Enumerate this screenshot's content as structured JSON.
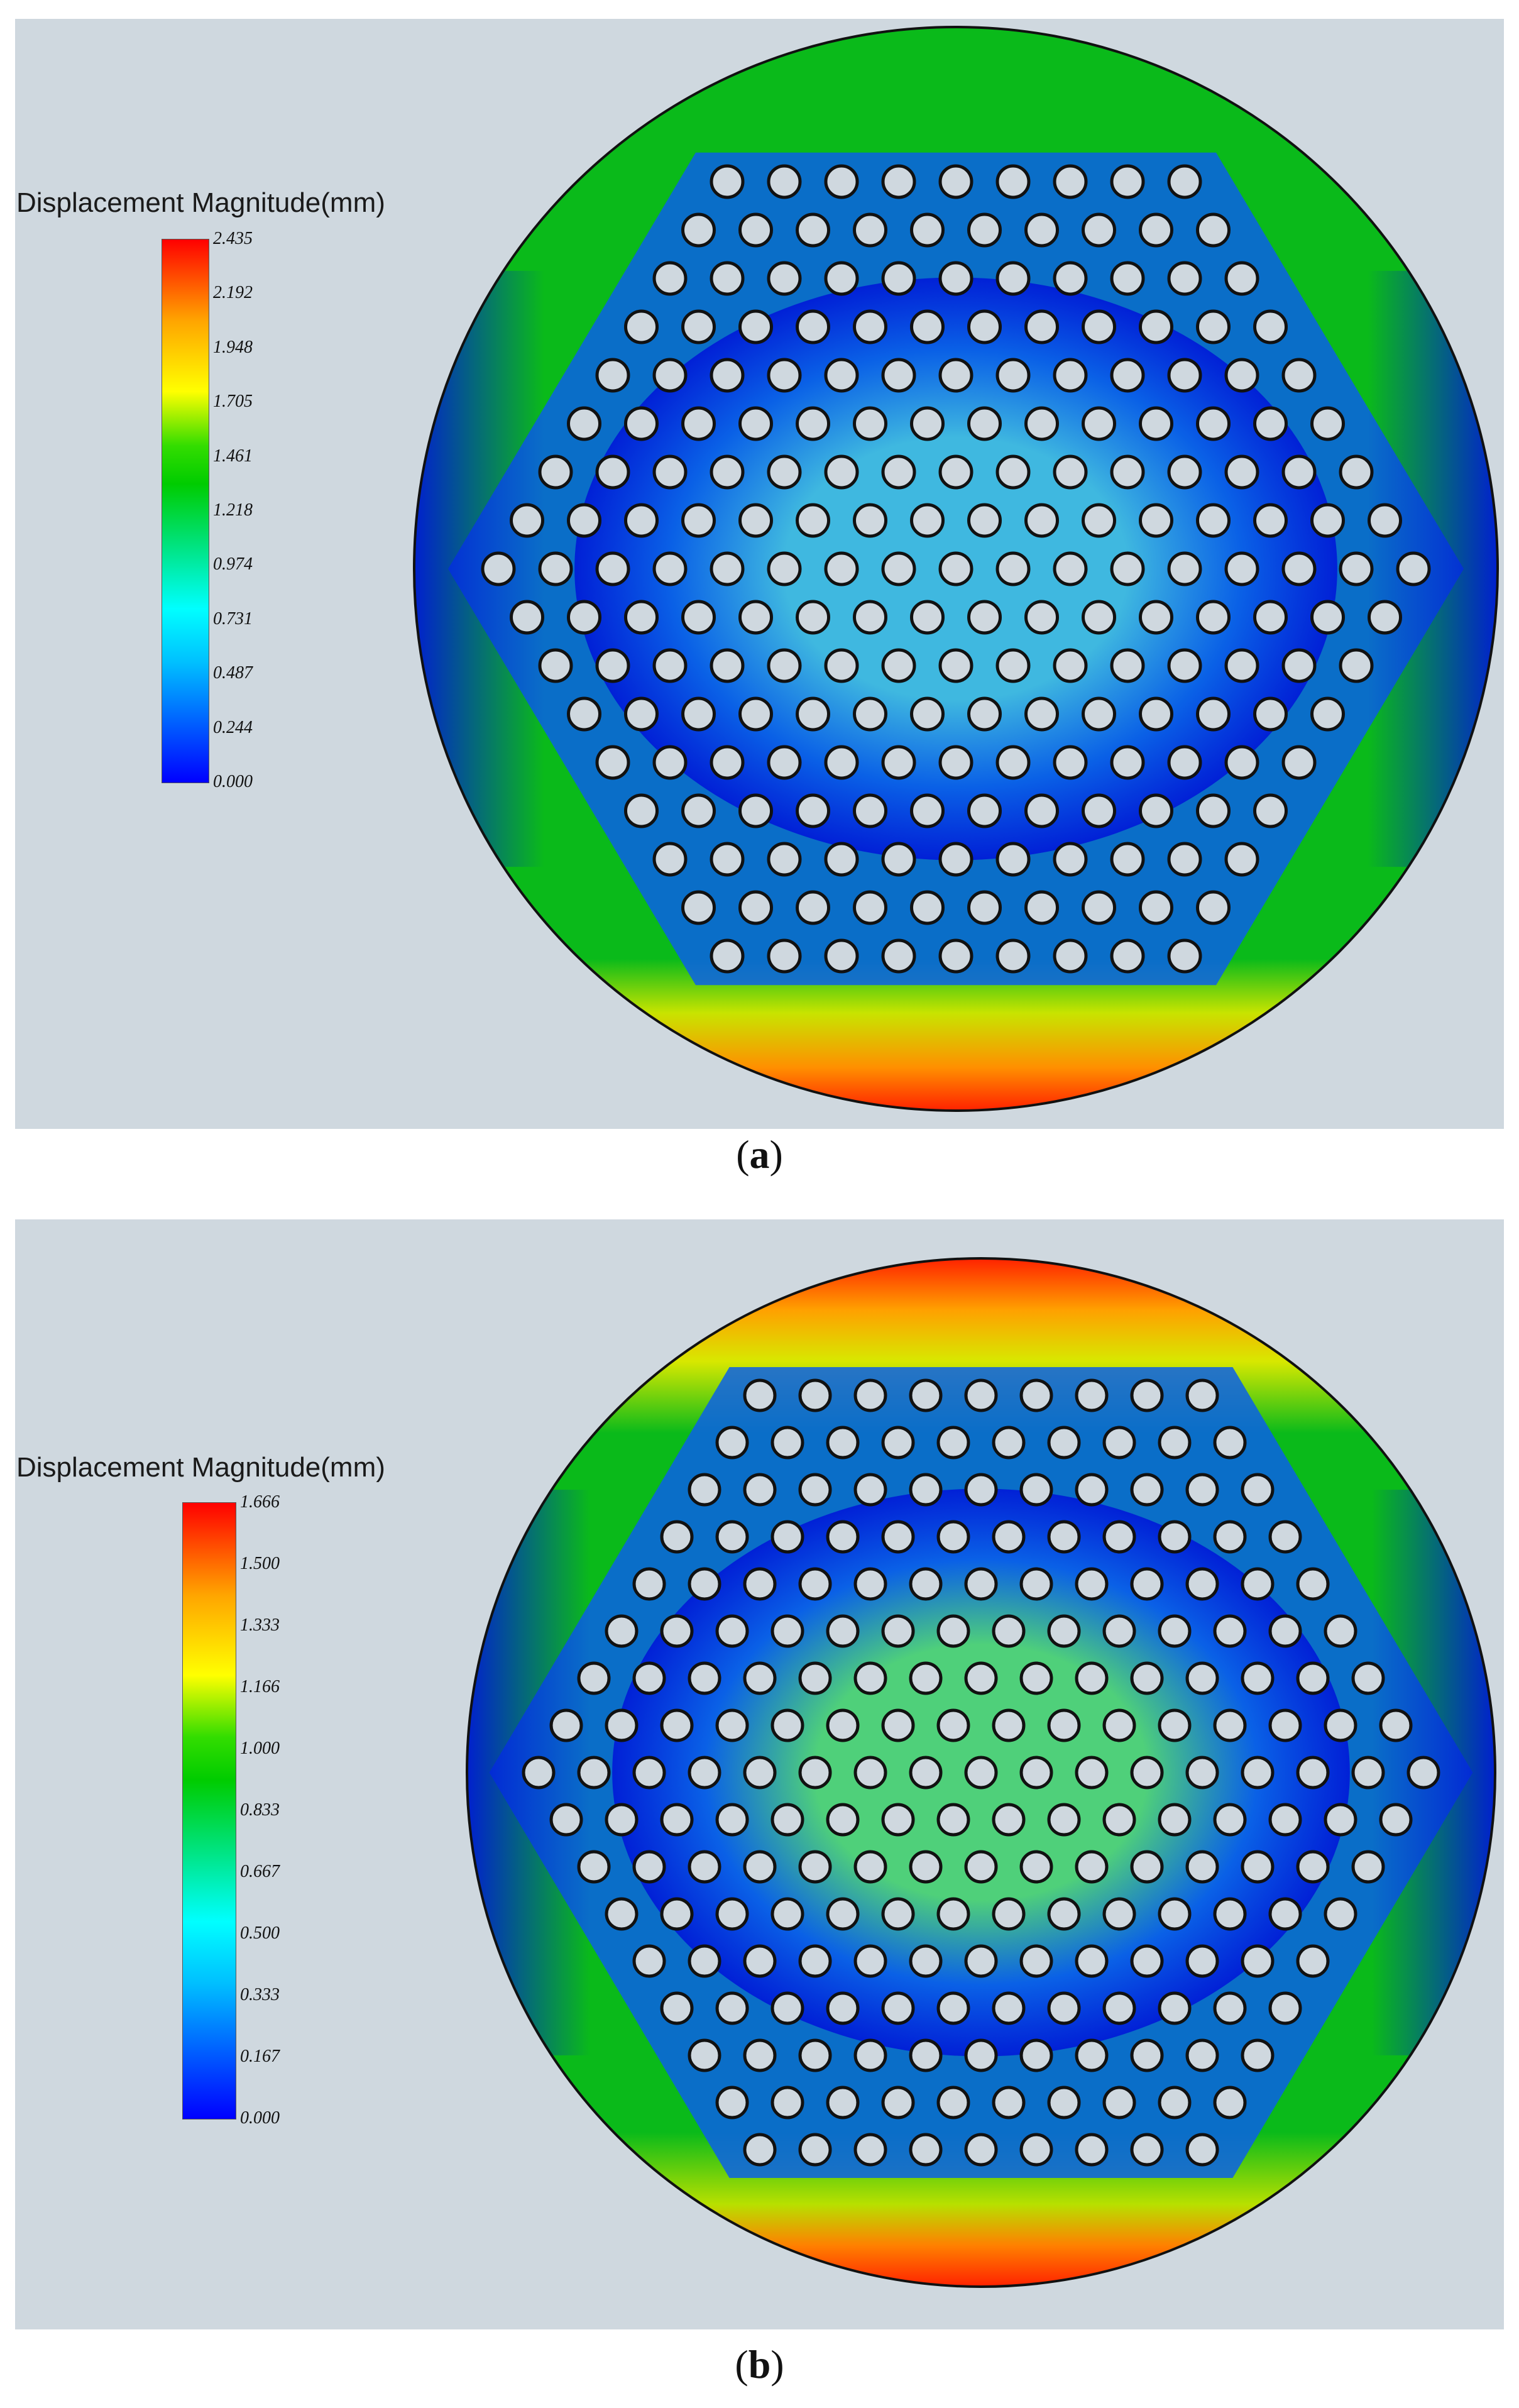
{
  "panels": [
    {
      "legend_title": "Displacement Magnitude(mm)",
      "ticks": [
        "2.435",
        "2.192",
        "1.948",
        "1.705",
        "1.461",
        "1.218",
        "0.974",
        "0.731",
        "0.487",
        "0.244",
        "0.000"
      ],
      "caption_label": "a",
      "hole_rows": [
        9,
        10,
        11,
        12,
        13,
        14,
        15,
        16,
        17,
        16,
        15,
        14,
        13,
        12,
        11,
        10,
        9
      ],
      "colors": {
        "edge_top": "#0aba1a",
        "edge_bottom_hot": "#ff2200",
        "edge_side": "#0018d8",
        "center": "#3fb8e0",
        "inner_ring": "#0a60e8"
      }
    },
    {
      "legend_title": "Displacement Magnitude(mm)",
      "ticks": [
        "1.666",
        "1.500",
        "1.333",
        "1.166",
        "1.000",
        "0.833",
        "0.667",
        "0.500",
        "0.333",
        "0.167",
        "0.000"
      ],
      "caption_label": "b",
      "hole_rows": [
        9,
        10,
        11,
        12,
        13,
        14,
        15,
        16,
        17,
        16,
        15,
        14,
        13,
        12,
        11,
        10,
        9
      ],
      "colors": {
        "edge_top": "#0aba1a",
        "edge_bottom_hot": "#ff2200",
        "edge_side": "#0018d8",
        "center": "#4fd07a",
        "inner_ring": "#0a60e8"
      }
    }
  ]
}
